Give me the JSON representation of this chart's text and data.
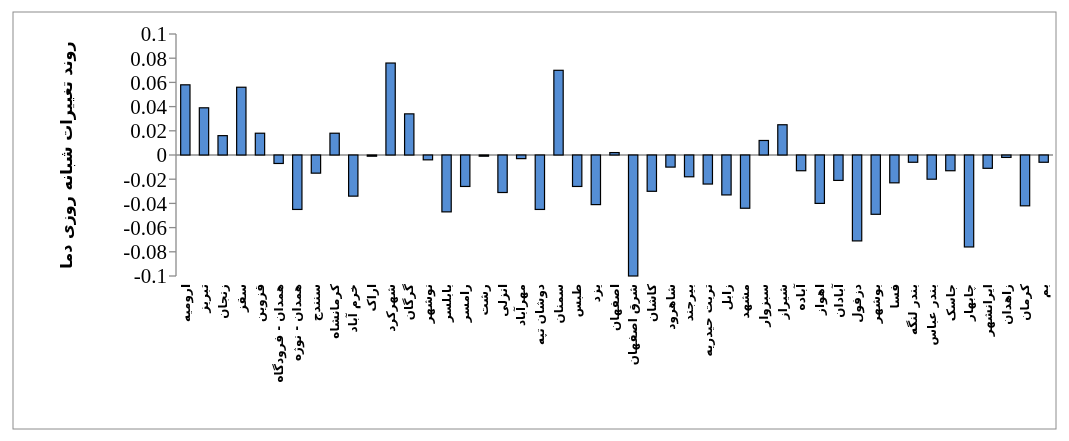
{
  "chart_data": {
    "type": "bar",
    "ylabel": "روند تغییرات شبانه روزی دما",
    "categories": [
      "ارومیه",
      "تبریز",
      "زنجان",
      "سقز",
      "قزوین",
      "همدان - فرودگاه",
      "همدان - نوژه",
      "سنندج",
      "کرمانشاه",
      "خرم آباد",
      "اراک",
      "شهرکرد",
      "گرگان",
      "نوشهر",
      "بابلسر",
      "رامسر",
      "رشت",
      "انزلی",
      "مهرآباد",
      "دوشان تپه",
      "سمنان",
      "طبس",
      "یزد",
      "اصفهان",
      "شرق اصفهان",
      "کاشان",
      "شاهرود",
      "بیرجند",
      "تربت حیدریه",
      "زابل",
      "مشهد",
      "سبزوار",
      "شیراز",
      "آباده",
      "اهواز",
      "آبادان",
      "دزفول",
      "بوشهر",
      "فسا",
      "بندر لنگه",
      "بندر عباس",
      "جاسک",
      "چابهار",
      "ایرانشهر",
      "زاهدان",
      "کرمان",
      "بم"
    ],
    "values": [
      0.058,
      0.039,
      0.016,
      0.056,
      0.018,
      -0.007,
      -0.045,
      -0.015,
      0.018,
      -0.034,
      -0.001,
      0.076,
      0.034,
      -0.004,
      -0.047,
      -0.026,
      -0.001,
      -0.031,
      -0.003,
      -0.045,
      0.07,
      -0.026,
      -0.041,
      0.002,
      -0.1,
      -0.03,
      -0.01,
      -0.018,
      -0.024,
      -0.033,
      -0.044,
      0.012,
      0.025,
      -0.013,
      -0.04,
      -0.021,
      -0.071,
      -0.049,
      -0.023,
      -0.006,
      -0.02,
      -0.013,
      -0.076,
      -0.011,
      -0.002,
      -0.042,
      -0.006
    ],
    "color": "#558ed5",
    "ylim": [
      -0.1,
      0.1
    ],
    "yticks": [
      -0.1,
      -0.08,
      -0.06,
      -0.04,
      -0.02,
      0,
      0.02,
      0.04,
      0.06,
      0.08,
      0.1
    ]
  }
}
